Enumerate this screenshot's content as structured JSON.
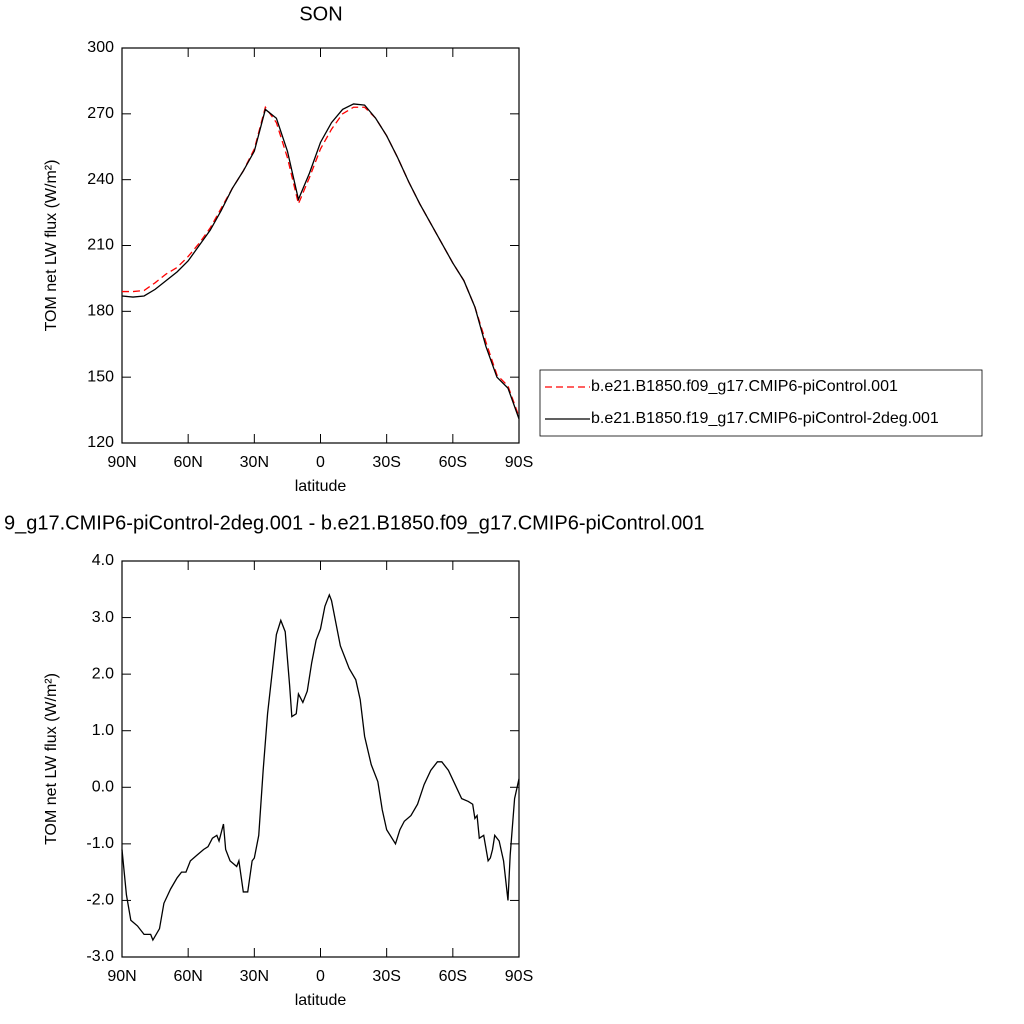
{
  "chart_data": [
    {
      "type": "line",
      "title": "SON",
      "xlabel": "latitude",
      "ylabel": "TOM net LW flux (W/m²)",
      "xlim": [
        90,
        -90
      ],
      "ylim": [
        120,
        300
      ],
      "xticks": [
        {
          "value": 90,
          "label": "90N"
        },
        {
          "value": 60,
          "label": "60N"
        },
        {
          "value": 30,
          "label": "30N"
        },
        {
          "value": 0,
          "label": "0"
        },
        {
          "value": -30,
          "label": "30S"
        },
        {
          "value": -60,
          "label": "60S"
        },
        {
          "value": -90,
          "label": "90S"
        }
      ],
      "yticks": [
        120,
        150,
        180,
        210,
        240,
        270,
        300
      ],
      "legend": "right",
      "x": [
        90,
        85,
        80,
        75,
        70,
        65,
        60,
        55,
        50,
        45,
        40,
        35,
        30,
        25,
        20,
        15,
        10,
        5,
        0,
        -5,
        -10,
        -15,
        -20,
        -25,
        -30,
        -35,
        -40,
        -45,
        -50,
        -55,
        -60,
        -65,
        -70,
        -75,
        -80,
        -85,
        -90
      ],
      "series": [
        {
          "name": "b.e21.B1850.f09_g17.CMIP6-piControl.001",
          "color": "#ff0000",
          "dash": true,
          "values": [
            189,
            189,
            189.5,
            193,
            197,
            200,
            205,
            211,
            218,
            227,
            236,
            244,
            254,
            273,
            266,
            250,
            229,
            241,
            254,
            263,
            270,
            273,
            273,
            268,
            260,
            250,
            239,
            229,
            220,
            211,
            202,
            194,
            182,
            166,
            151,
            146,
            132
          ]
        },
        {
          "name": "b.e21.B1850.f19_g17.CMIP6-piControl-2deg.001",
          "color": "#000000",
          "dash": false,
          "values": [
            187,
            186.5,
            187,
            190,
            194,
            198,
            203,
            210,
            217,
            226,
            236,
            244,
            253,
            272,
            268,
            253,
            231,
            243,
            257,
            266,
            272,
            274.5,
            274,
            268,
            260,
            250,
            239,
            229,
            220,
            211,
            202,
            194,
            182,
            164,
            150,
            145,
            131
          ]
        }
      ]
    },
    {
      "type": "line",
      "title": "9_g17.CMIP6-piControl-2deg.001 - b.e21.B1850.f09_g17.CMIP6-piControl.001",
      "xlabel": "latitude",
      "ylabel": "TOM net LW flux (W/m²)",
      "xlim": [
        90,
        -90
      ],
      "ylim": [
        -3,
        4
      ],
      "xticks": [
        {
          "value": 90,
          "label": "90N"
        },
        {
          "value": 60,
          "label": "60N"
        },
        {
          "value": 30,
          "label": "30N"
        },
        {
          "value": 0,
          "label": "0"
        },
        {
          "value": -30,
          "label": "30S"
        },
        {
          "value": -60,
          "label": "60S"
        },
        {
          "value": -90,
          "label": "90S"
        }
      ],
      "yticks": [
        {
          "value": -3,
          "label": "-3.0"
        },
        {
          "value": -2,
          "label": "-2.0"
        },
        {
          "value": -1,
          "label": "-1.0"
        },
        {
          "value": 0,
          "label": "0.0"
        },
        {
          "value": 1,
          "label": "1.0"
        },
        {
          "value": 2,
          "label": "2.0"
        },
        {
          "value": 3,
          "label": "3.0"
        },
        {
          "value": 4,
          "label": "4.0"
        }
      ],
      "x": [
        90,
        88,
        86,
        83,
        80,
        77,
        76,
        73,
        71,
        68,
        65,
        63,
        61,
        59,
        56,
        53,
        51,
        49,
        47,
        46,
        44,
        43,
        41,
        38,
        37,
        35,
        33,
        31,
        30,
        28,
        26,
        24,
        22,
        20,
        18,
        16,
        14,
        13,
        11,
        10,
        8,
        6,
        4,
        2,
        0,
        -2,
        -4,
        -5,
        -7,
        -9,
        -11,
        -13,
        -16,
        -18,
        -20,
        -23,
        -26,
        -28,
        -30,
        -34,
        -36,
        -38,
        -41,
        -44,
        -47,
        -50,
        -53,
        -55,
        -58,
        -61,
        -64,
        -67,
        -69,
        -70,
        -71,
        -72,
        -74,
        -76,
        -77,
        -78,
        -79,
        -81,
        -83,
        -85,
        -86,
        -88,
        -90
      ],
      "series": [
        {
          "color": "#000000",
          "dash": false,
          "values": [
            -1.1,
            -1.9,
            -2.35,
            -2.45,
            -2.6,
            -2.6,
            -2.7,
            -2.5,
            -2.05,
            -1.8,
            -1.6,
            -1.5,
            -1.5,
            -1.3,
            -1.2,
            -1.1,
            -1.05,
            -0.9,
            -0.85,
            -0.95,
            -0.65,
            -1.1,
            -1.3,
            -1.4,
            -1.3,
            -1.85,
            -1.85,
            -1.3,
            -1.25,
            -0.85,
            0.3,
            1.3,
            2.0,
            2.7,
            2.95,
            2.75,
            1.8,
            1.25,
            1.3,
            1.65,
            1.5,
            1.7,
            2.2,
            2.6,
            2.8,
            3.2,
            3.4,
            3.3,
            2.9,
            2.5,
            2.3,
            2.1,
            1.9,
            1.55,
            0.9,
            0.4,
            0.1,
            -0.4,
            -0.75,
            -1.0,
            -0.75,
            -0.6,
            -0.5,
            -0.3,
            0.05,
            0.3,
            0.45,
            0.45,
            0.3,
            0.05,
            -0.2,
            -0.25,
            -0.3,
            -0.55,
            -0.5,
            -0.9,
            -0.85,
            -1.3,
            -1.25,
            -1.1,
            -0.85,
            -0.95,
            -1.3,
            -2.0,
            -1.2,
            -0.2,
            0.15
          ]
        }
      ]
    }
  ]
}
